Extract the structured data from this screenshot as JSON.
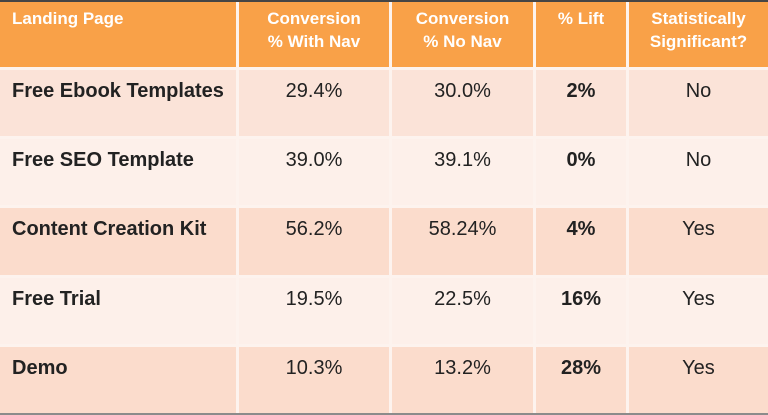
{
  "colors": {
    "header_bg": "#f9a148",
    "header_text": "#ffffff",
    "body_text": "#222222",
    "grid_line": "#fdf3ee",
    "top_border": "#454545",
    "bottom_border": "#8b8b8b",
    "row_backgrounds": [
      "#fbe3d8",
      "#fdf0ea",
      "#fbdccc",
      "#fdf0ea",
      "#fbdccc"
    ]
  },
  "table": {
    "columns": [
      {
        "label": "Landing Page",
        "lines": [
          "Landing Page",
          ""
        ]
      },
      {
        "label": "Conversion % With Nav",
        "lines": [
          "Conversion",
          "% With Nav"
        ]
      },
      {
        "label": "Conversion % No Nav",
        "lines": [
          "Conversion",
          "% No Nav"
        ]
      },
      {
        "label": "% Lift",
        "lines": [
          "% Lift",
          ""
        ]
      },
      {
        "label": "Statistically Significant?",
        "lines": [
          "Statistically",
          "Significant?"
        ]
      }
    ],
    "rows": [
      {
        "landing_page": "Free Ebook Templates",
        "conv_with_nav": "29.4%",
        "conv_no_nav": "30.0%",
        "lift": "2%",
        "significant": "No"
      },
      {
        "landing_page": "Free SEO Template",
        "conv_with_nav": "39.0%",
        "conv_no_nav": "39.1%",
        "lift": "0%",
        "significant": "No"
      },
      {
        "landing_page": "Content Creation Kit",
        "conv_with_nav": "56.2%",
        "conv_no_nav": "58.24%",
        "lift": "4%",
        "significant": "Yes"
      },
      {
        "landing_page": "Free Trial",
        "conv_with_nav": "19.5%",
        "conv_no_nav": "22.5%",
        "lift": "16%",
        "significant": "Yes"
      },
      {
        "landing_page": "Demo",
        "conv_with_nav": "10.3%",
        "conv_no_nav": "13.2%",
        "lift": "28%",
        "significant": "Yes"
      }
    ]
  },
  "chart_data": {
    "type": "table",
    "title": "",
    "columns": [
      "Landing Page",
      "Conversion % With Nav",
      "Conversion % No Nav",
      "% Lift",
      "Statistically Significant?"
    ],
    "rows": [
      [
        "Free Ebook Templates",
        "29.4%",
        "30.0%",
        "2%",
        "No"
      ],
      [
        "Free SEO Template",
        "39.0%",
        "39.1%",
        "0%",
        "No"
      ],
      [
        "Content Creation Kit",
        "56.2%",
        "58.24%",
        "4%",
        "Yes"
      ],
      [
        "Free Trial",
        "19.5%",
        "22.5%",
        "16%",
        "Yes"
      ],
      [
        "Demo",
        "10.3%",
        "13.2%",
        "28%",
        "Yes"
      ]
    ],
    "notes": {
      "conversion_with_nav": [
        29.4,
        39.0,
        56.2,
        19.5,
        10.3
      ],
      "conversion_no_nav": [
        30.0,
        39.1,
        58.24,
        22.5,
        13.2
      ],
      "lift_percent": [
        2,
        0,
        4,
        16,
        28
      ],
      "statistically_significant": [
        false,
        false,
        true,
        true,
        true
      ]
    }
  }
}
